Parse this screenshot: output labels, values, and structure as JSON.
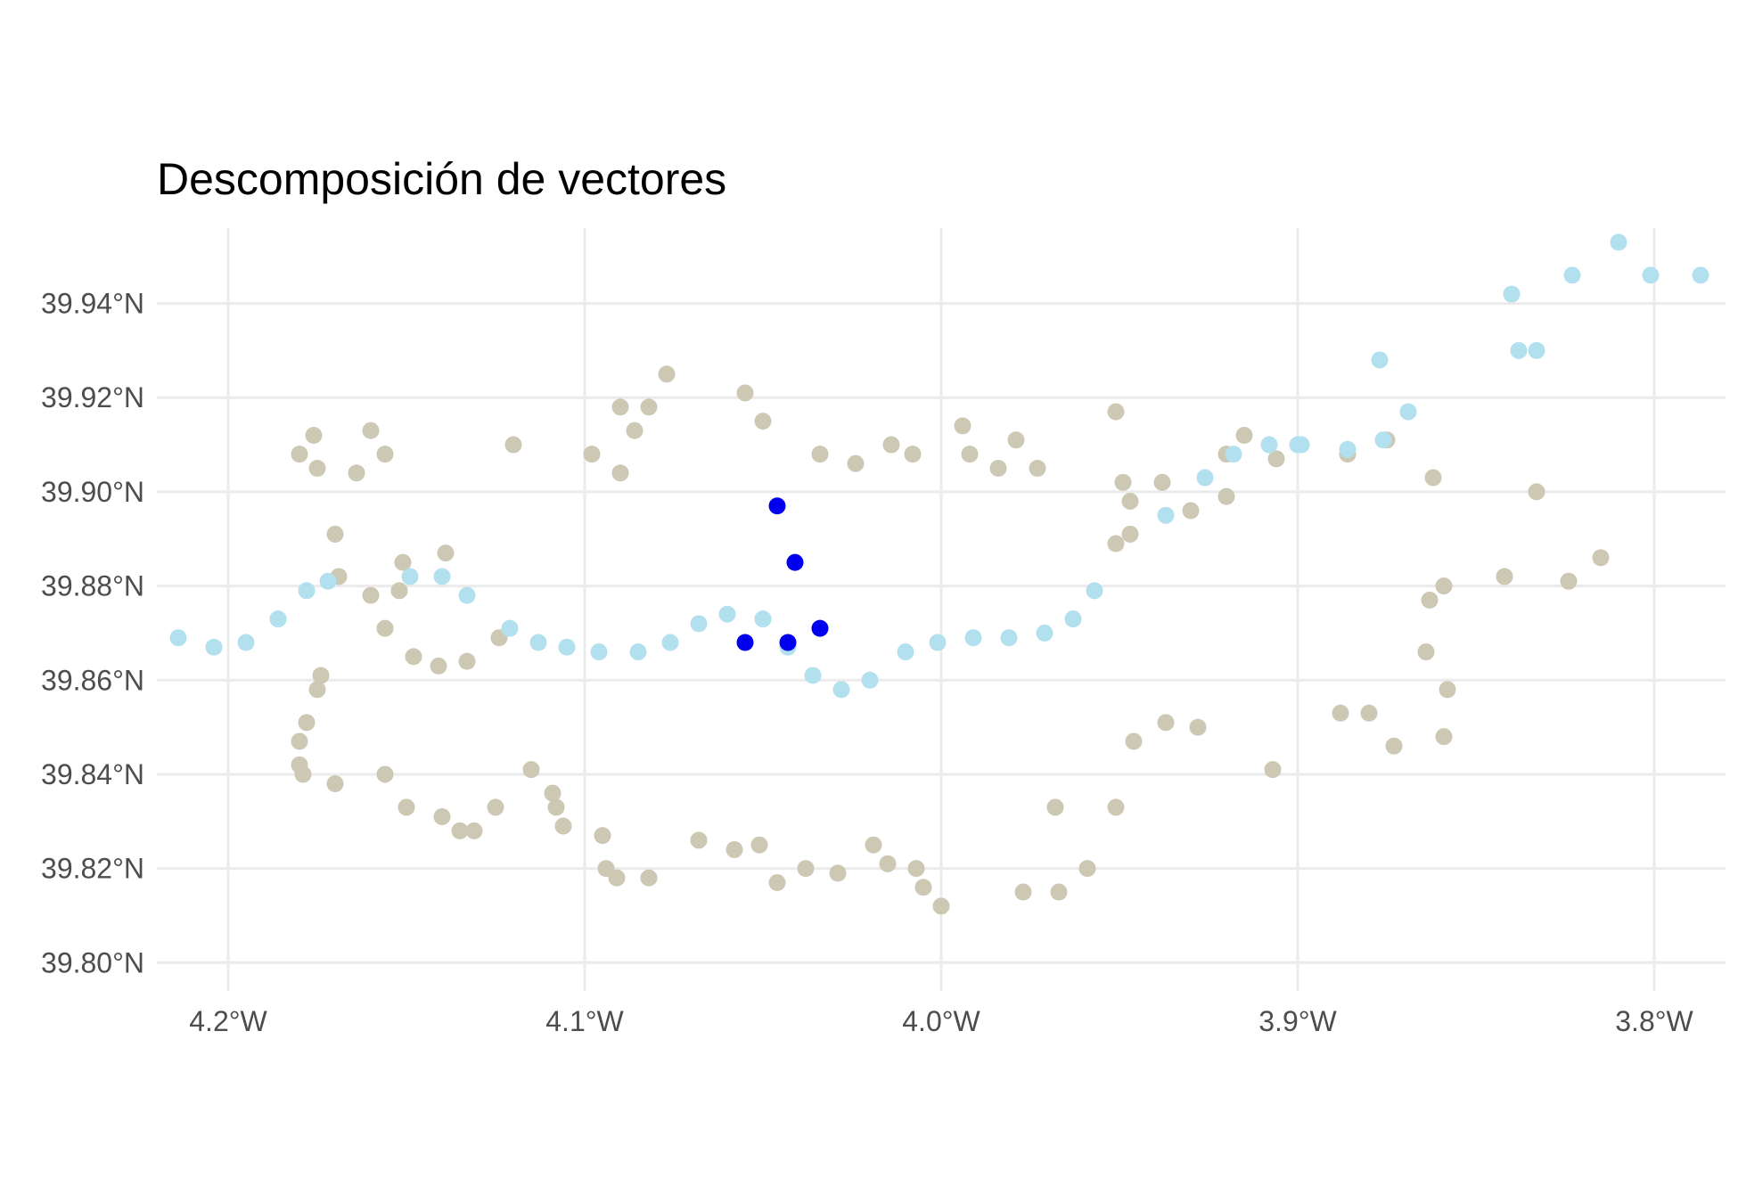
{
  "chart_data": {
    "type": "scatter",
    "title": "Descomposición de vectores",
    "xlabel": "",
    "ylabel": "",
    "xlim": [
      -4.22,
      -3.78
    ],
    "ylim": [
      39.794,
      39.956
    ],
    "x_ticks": [
      -4.2,
      -4.1,
      -4.0,
      -3.9,
      -3.8
    ],
    "x_tick_labels": [
      "4.2°W",
      "4.1°W",
      "4.0°W",
      "3.9°W",
      "3.8°W"
    ],
    "y_ticks": [
      39.8,
      39.82,
      39.84,
      39.86,
      39.88,
      39.9,
      39.92,
      39.94
    ],
    "y_tick_labels": [
      "39.80°N",
      "39.82°N",
      "39.84°N",
      "39.86°N",
      "39.88°N",
      "39.90°N",
      "39.92°N",
      "39.94°N"
    ],
    "grid": true,
    "legend": "none",
    "series": [
      {
        "color": "#cdc8b4",
        "points": [
          [
            -4.18,
            39.908
          ],
          [
            -4.176,
            39.912
          ],
          [
            -4.175,
            39.905
          ],
          [
            -4.164,
            39.904
          ],
          [
            -4.16,
            39.913
          ],
          [
            -4.156,
            39.908
          ],
          [
            -4.17,
            39.891
          ],
          [
            -4.169,
            39.882
          ],
          [
            -4.16,
            39.878
          ],
          [
            -4.152,
            39.879
          ],
          [
            -4.151,
            39.885
          ],
          [
            -4.139,
            39.887
          ],
          [
            -4.156,
            39.871
          ],
          [
            -4.148,
            39.865
          ],
          [
            -4.141,
            39.863
          ],
          [
            -4.133,
            39.864
          ],
          [
            -4.124,
            39.869
          ],
          [
            -4.174,
            39.861
          ],
          [
            -4.175,
            39.858
          ],
          [
            -4.178,
            39.851
          ],
          [
            -4.18,
            39.847
          ],
          [
            -4.18,
            39.842
          ],
          [
            -4.179,
            39.84
          ],
          [
            -4.17,
            39.838
          ],
          [
            -4.156,
            39.84
          ],
          [
            -4.15,
            39.833
          ],
          [
            -4.14,
            39.831
          ],
          [
            -4.135,
            39.828
          ],
          [
            -4.131,
            39.828
          ],
          [
            -4.125,
            39.833
          ],
          [
            -4.115,
            39.841
          ],
          [
            -4.109,
            39.836
          ],
          [
            -4.108,
            39.833
          ],
          [
            -4.106,
            39.829
          ],
          [
            -4.095,
            39.827
          ],
          [
            -4.094,
            39.82
          ],
          [
            -4.091,
            39.818
          ],
          [
            -4.082,
            39.818
          ],
          [
            -4.068,
            39.826
          ],
          [
            -4.058,
            39.824
          ],
          [
            -4.051,
            39.825
          ],
          [
            -4.046,
            39.817
          ],
          [
            -4.038,
            39.82
          ],
          [
            -4.029,
            39.819
          ],
          [
            -4.019,
            39.825
          ],
          [
            -4.015,
            39.821
          ],
          [
            -4.007,
            39.82
          ],
          [
            -4.005,
            39.816
          ],
          [
            -4.0,
            39.812
          ],
          [
            -3.977,
            39.815
          ],
          [
            -3.967,
            39.815
          ],
          [
            -3.959,
            39.82
          ],
          [
            -3.968,
            39.833
          ],
          [
            -3.951,
            39.833
          ],
          [
            -3.946,
            39.847
          ],
          [
            -3.937,
            39.851
          ],
          [
            -3.928,
            39.85
          ],
          [
            -4.12,
            39.91
          ],
          [
            -4.098,
            39.908
          ],
          [
            -4.09,
            39.904
          ],
          [
            -4.09,
            39.918
          ],
          [
            -4.086,
            39.913
          ],
          [
            -4.082,
            39.918
          ],
          [
            -4.077,
            39.925
          ],
          [
            -4.055,
            39.921
          ],
          [
            -4.05,
            39.915
          ],
          [
            -4.034,
            39.908
          ],
          [
            -4.024,
            39.906
          ],
          [
            -4.014,
            39.91
          ],
          [
            -4.008,
            39.908
          ],
          [
            -3.994,
            39.914
          ],
          [
            -3.992,
            39.908
          ],
          [
            -3.984,
            39.905
          ],
          [
            -3.979,
            39.911
          ],
          [
            -3.973,
            39.905
          ],
          [
            -3.949,
            39.902
          ],
          [
            -3.951,
            39.917
          ],
          [
            -3.938,
            39.902
          ],
          [
            -3.947,
            39.898
          ],
          [
            -3.93,
            39.896
          ],
          [
            -3.947,
            39.891
          ],
          [
            -3.951,
            39.889
          ],
          [
            -3.92,
            39.899
          ],
          [
            -3.915,
            39.912
          ],
          [
            -3.92,
            39.908
          ],
          [
            -3.906,
            39.907
          ],
          [
            -3.886,
            39.908
          ],
          [
            -3.875,
            39.911
          ],
          [
            -3.862,
            39.903
          ],
          [
            -3.833,
            39.9
          ],
          [
            -3.863,
            39.877
          ],
          [
            -3.859,
            39.88
          ],
          [
            -3.864,
            39.866
          ],
          [
            -3.842,
            39.882
          ],
          [
            -3.824,
            39.881
          ],
          [
            -3.815,
            39.886
          ],
          [
            -3.858,
            39.858
          ],
          [
            -3.859,
            39.848
          ],
          [
            -3.873,
            39.846
          ],
          [
            -3.88,
            39.853
          ],
          [
            -3.888,
            39.853
          ],
          [
            -3.907,
            39.841
          ]
        ]
      },
      {
        "color": "#b2e0ee",
        "points": [
          [
            -4.214,
            39.869
          ],
          [
            -4.204,
            39.867
          ],
          [
            -4.195,
            39.868
          ],
          [
            -4.186,
            39.873
          ],
          [
            -4.178,
            39.879
          ],
          [
            -4.172,
            39.881
          ],
          [
            -4.149,
            39.882
          ],
          [
            -4.14,
            39.882
          ],
          [
            -4.133,
            39.878
          ],
          [
            -4.121,
            39.871
          ],
          [
            -4.113,
            39.868
          ],
          [
            -4.105,
            39.867
          ],
          [
            -4.096,
            39.866
          ],
          [
            -4.085,
            39.866
          ],
          [
            -4.076,
            39.868
          ],
          [
            -4.068,
            39.872
          ],
          [
            -4.06,
            39.874
          ],
          [
            -4.05,
            39.873
          ],
          [
            -4.043,
            39.867
          ],
          [
            -4.036,
            39.861
          ],
          [
            -4.028,
            39.858
          ],
          [
            -4.02,
            39.86
          ],
          [
            -4.01,
            39.866
          ],
          [
            -4.001,
            39.868
          ],
          [
            -3.991,
            39.869
          ],
          [
            -3.981,
            39.869
          ],
          [
            -3.971,
            39.87
          ],
          [
            -3.963,
            39.873
          ],
          [
            -3.957,
            39.879
          ],
          [
            -3.937,
            39.895
          ],
          [
            -3.926,
            39.903
          ],
          [
            -3.918,
            39.908
          ],
          [
            -3.908,
            39.91
          ],
          [
            -3.9,
            39.91
          ],
          [
            -3.899,
            39.91
          ],
          [
            -3.886,
            39.909
          ],
          [
            -3.876,
            39.911
          ],
          [
            -3.877,
            39.928
          ],
          [
            -3.869,
            39.917
          ],
          [
            -3.84,
            39.942
          ],
          [
            -3.838,
            39.93
          ],
          [
            -3.833,
            39.93
          ],
          [
            -3.823,
            39.946
          ],
          [
            -3.81,
            39.953
          ],
          [
            -3.801,
            39.946
          ],
          [
            -3.787,
            39.946
          ]
        ]
      },
      {
        "color": "#0000ee",
        "points": [
          [
            -4.046,
            39.897
          ],
          [
            -4.041,
            39.885
          ],
          [
            -4.034,
            39.871
          ],
          [
            -4.043,
            39.868
          ],
          [
            -4.055,
            39.868
          ]
        ]
      }
    ]
  }
}
